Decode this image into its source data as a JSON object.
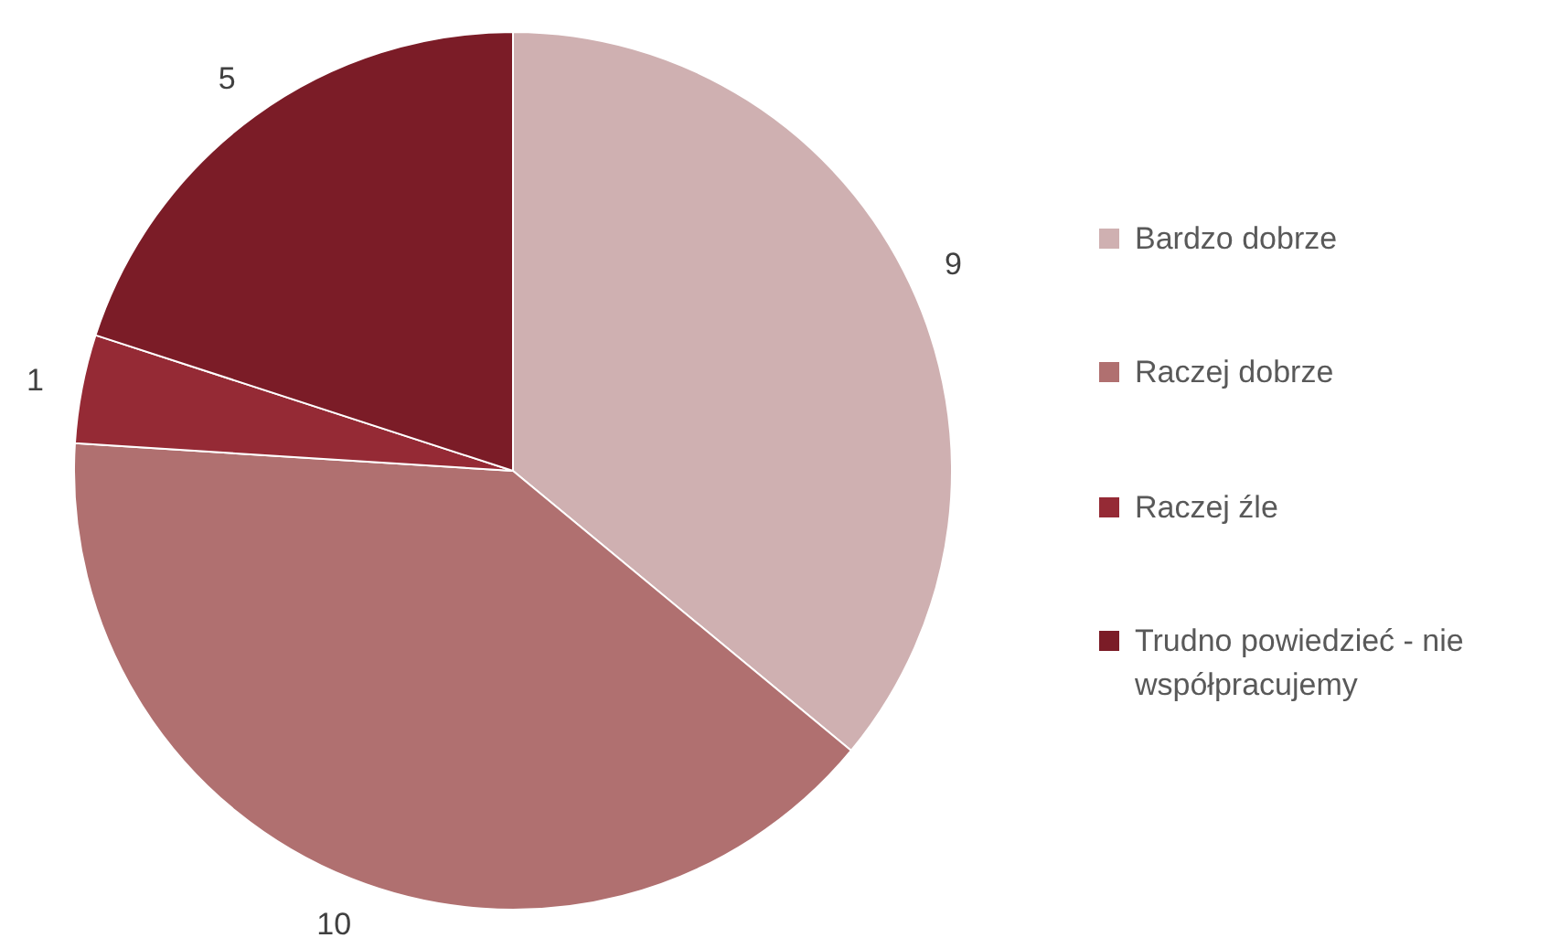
{
  "chart_data": {
    "type": "pie",
    "categories": [
      "Bardzo dobrze",
      "Raczej dobrze",
      "Raczej źle",
      "Trudno powiedzieć - nie współpracujemy"
    ],
    "values": [
      9,
      10,
      1,
      5
    ],
    "colors": [
      "#cfb0b1",
      "#b07070",
      "#952a35",
      "#7b1c27"
    ],
    "data_labels": true,
    "legend": "right"
  }
}
